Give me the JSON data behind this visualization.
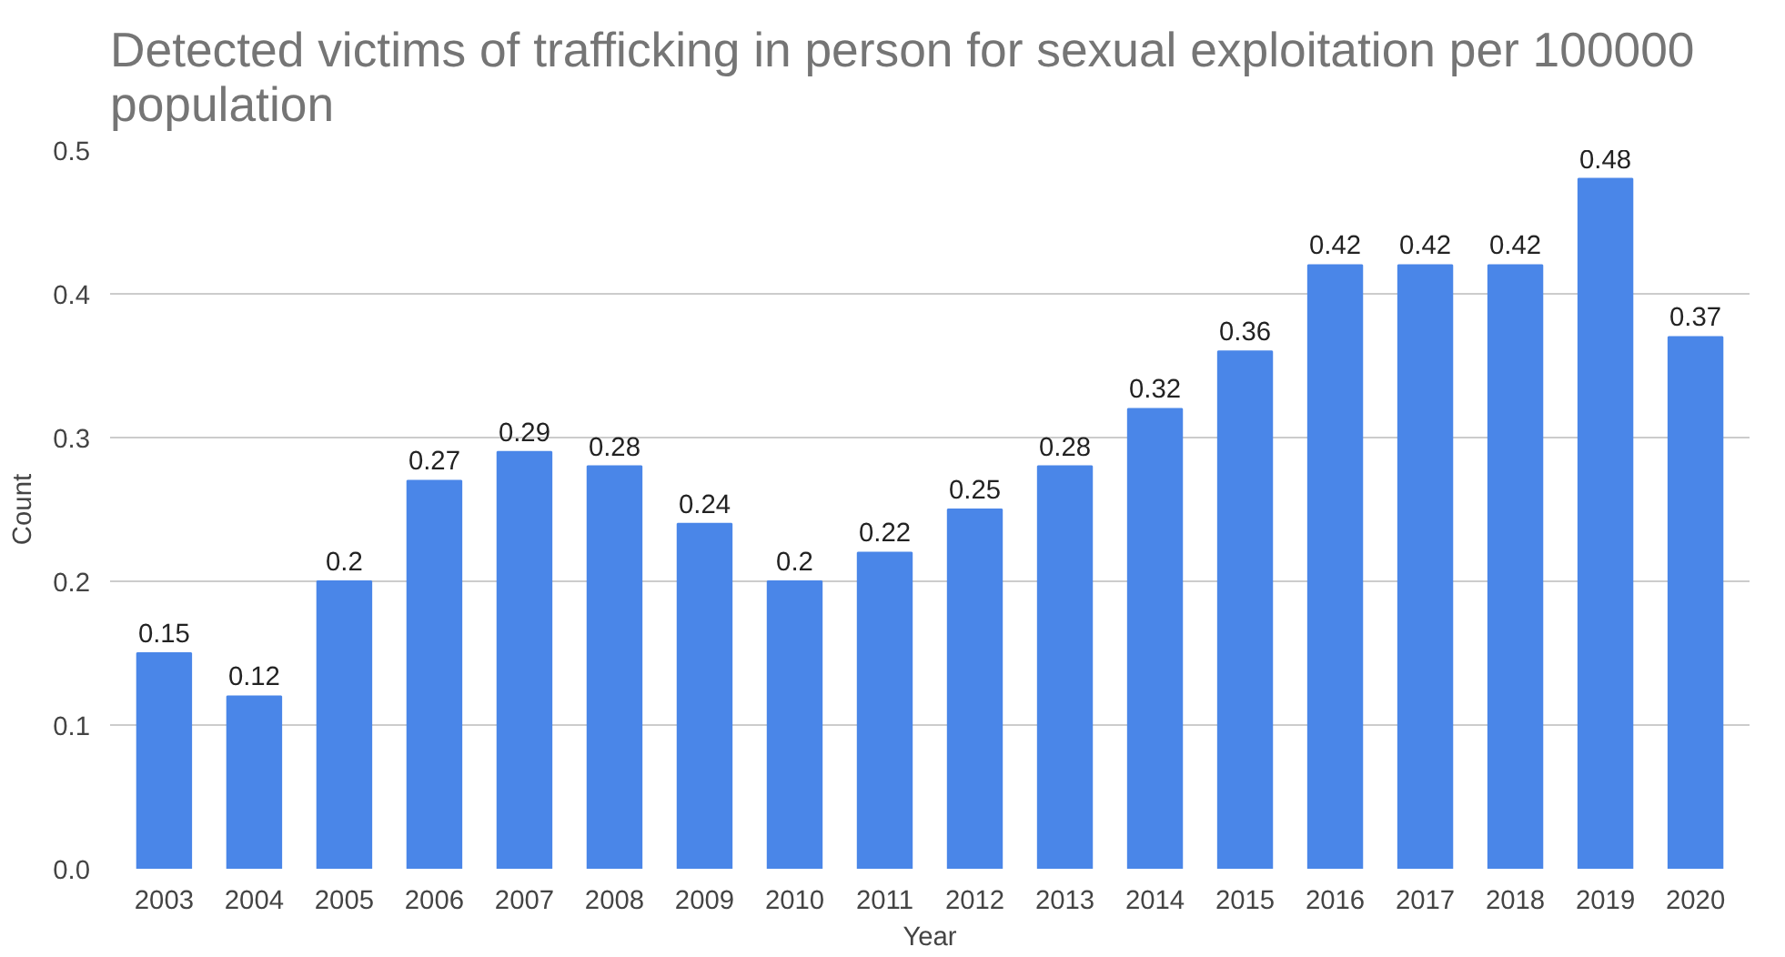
{
  "chart_data": {
    "type": "bar",
    "title": "Detected victims of trafficking in person for sexual exploitation per 100000 population",
    "xlabel": "Year",
    "ylabel": "Count",
    "categories": [
      "2003",
      "2004",
      "2005",
      "2006",
      "2007",
      "2008",
      "2009",
      "2010",
      "2011",
      "2012",
      "2013",
      "2014",
      "2015",
      "2016",
      "2017",
      "2018",
      "2019",
      "2020"
    ],
    "values": [
      0.15,
      0.12,
      0.2,
      0.27,
      0.29,
      0.28,
      0.24,
      0.2,
      0.22,
      0.25,
      0.28,
      0.32,
      0.36,
      0.42,
      0.42,
      0.42,
      0.48,
      0.37
    ],
    "color": "#4a86e8",
    "ylim": [
      0,
      0.5
    ],
    "yticks": [
      {
        "value": 0,
        "label": "0.0"
      },
      0.1,
      0.2,
      0.3,
      0.4,
      0.5
    ],
    "grid": "y",
    "data_labels": true
  }
}
